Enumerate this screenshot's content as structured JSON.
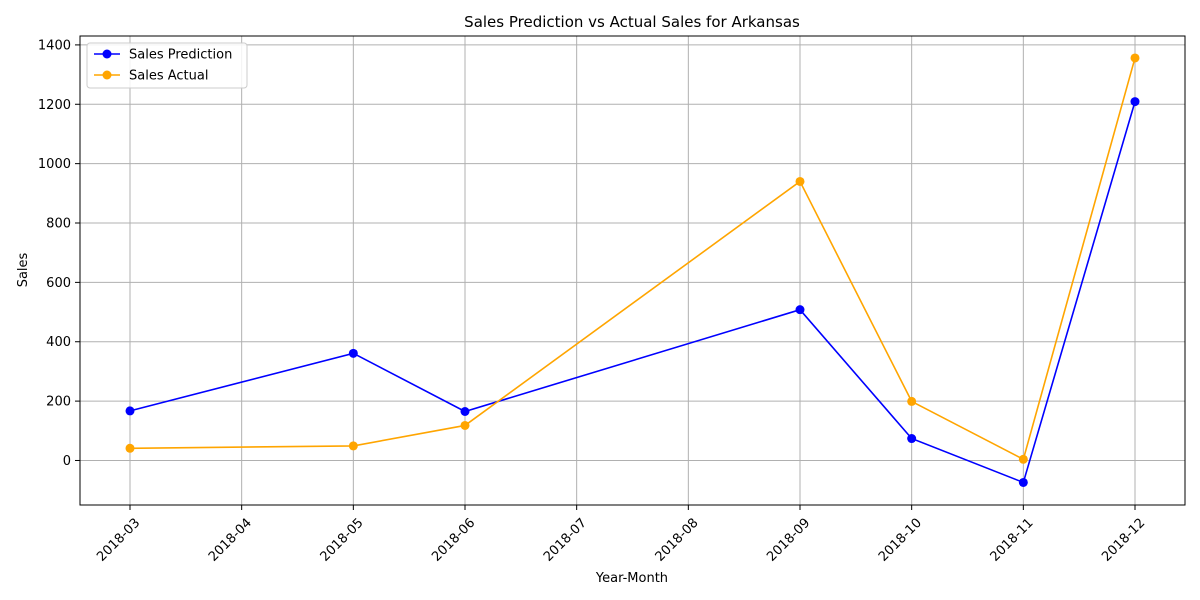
{
  "chart_data": {
    "type": "line",
    "title": "Sales Prediction vs Actual Sales for Arkansas",
    "xlabel": "Year-Month",
    "ylabel": "Sales",
    "x_ticks": [
      "2018-03",
      "2018-04",
      "2018-05",
      "2018-06",
      "2018-07",
      "2018-08",
      "2018-09",
      "2018-10",
      "2018-11",
      "2018-12"
    ],
    "y_ticks": [
      0,
      200,
      400,
      600,
      800,
      1000,
      1200,
      1400
    ],
    "ylim": [
      -150,
      1430
    ],
    "grid": true,
    "legend_position": "top-left",
    "series": [
      {
        "name": "Sales Prediction",
        "color": "#0000ff",
        "x": [
          "2018-03",
          "2018-05",
          "2018-06",
          "2018-09",
          "2018-10",
          "2018-11",
          "2018-12"
        ],
        "values": [
          167,
          361,
          165,
          508,
          74,
          -74,
          1209
        ]
      },
      {
        "name": "Sales Actual",
        "color": "#ffa500",
        "x": [
          "2018-03",
          "2018-05",
          "2018-06",
          "2018-09",
          "2018-10",
          "2018-11",
          "2018-12"
        ],
        "values": [
          41,
          49,
          118,
          940,
          199,
          4,
          1356
        ]
      }
    ]
  }
}
